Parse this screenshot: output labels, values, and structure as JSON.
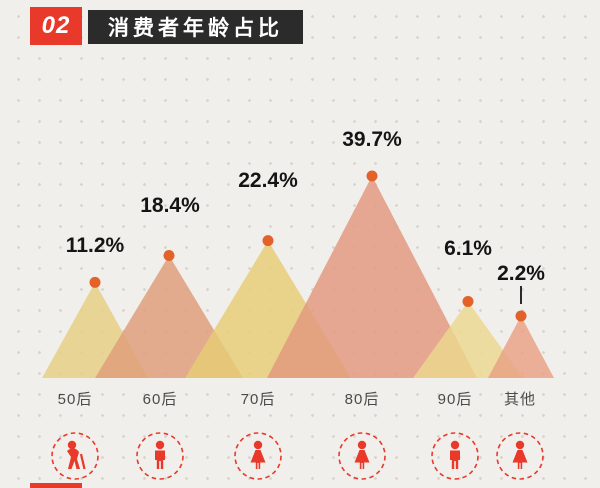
{
  "header": {
    "number": "02",
    "title": "消费者年龄占比"
  },
  "chart_data": {
    "type": "area",
    "title": "消费者年龄占比",
    "categories": [
      "50后",
      "60后",
      "70后",
      "80后",
      "90后",
      "其他"
    ],
    "values": [
      11.2,
      18.4,
      22.4,
      39.7,
      6.1,
      2.2
    ],
    "value_labels": [
      "11.2%",
      "18.4%",
      "22.4%",
      "39.7%",
      "6.1%",
      "2.2%"
    ],
    "unit": "%",
    "ylim": [
      0,
      45
    ],
    "legend": "none",
    "grid": "dotted-background",
    "triangle_colors": [
      "#e5cf82",
      "#df9c79",
      "#e6cd74",
      "#e2977e",
      "#ecd88d",
      "#e8a183"
    ],
    "dot_color": "#e2622a",
    "icons": [
      "elderly-man-icon",
      "man-icon",
      "woman-icon",
      "woman-icon",
      "man-icon",
      "woman-icon"
    ]
  },
  "theme": {
    "accent_red": "#e8392b",
    "header_bg": "#2b2b2b",
    "background": "#f1efeb",
    "text_dark": "#141414",
    "label_gray": "#4a4a4a"
  }
}
